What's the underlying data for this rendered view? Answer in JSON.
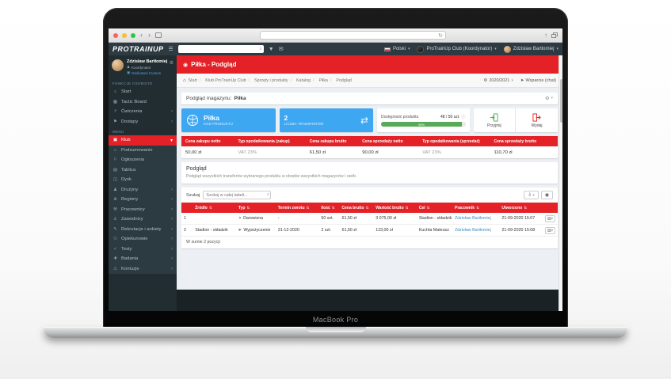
{
  "laptop": {
    "label": "MacBook Pro"
  },
  "icons": {
    "hamburger": "☰",
    "magnifier": "⌕",
    "filter": "▼",
    "mail": "✉",
    "caret_down": "▾",
    "chevron_right": "›",
    "gear": "⚙",
    "home": "⌂",
    "transfer": "⇄",
    "info": "ⓘ",
    "sort": "⇅",
    "refresh": "↻",
    "back": "‹",
    "forward": "›",
    "share": "↑",
    "ball": "◉",
    "role": "♟",
    "link_badge": "▣",
    "download": "⇩",
    "eye": "◉",
    "row_menu": "▤",
    "support": "➤"
  },
  "navbar": {
    "brand": "PROTRAINUP",
    "language": "Polski",
    "club": "ProTrainUp Club  (Koordynator)",
    "user": "Zdzisław Bartłomiej"
  },
  "sidebar": {
    "profile": {
      "name": "Zdzisław Bartłomiej",
      "role": "Koordynator",
      "link": "Dedicated Custom"
    },
    "section_personal": "FUNKCJE OSOBISTE",
    "personal": [
      {
        "label": "Start",
        "icon": "⌂"
      },
      {
        "label": "Tactic Board",
        "icon": "▦"
      },
      {
        "label": "Ćwiczenia",
        "icon": "⚡"
      },
      {
        "label": "Dostępy",
        "icon": "⚑"
      }
    ],
    "section_menu": "MENU",
    "active_item": {
      "label": "Klub",
      "icon": "▣"
    },
    "menu": [
      {
        "label": "Podsumowanie",
        "icon": "⌂"
      },
      {
        "label": "Ogłoszenia",
        "icon": "⚐"
      },
      {
        "label": "Tablica",
        "icon": "▤"
      },
      {
        "label": "Dysk",
        "icon": "◫"
      },
      {
        "label": "Drużyny",
        "icon": "♟"
      },
      {
        "label": "Regiony",
        "icon": "⊕"
      },
      {
        "label": "Pracownicy",
        "icon": "⚒"
      },
      {
        "label": "Zawodnicy",
        "icon": "♙"
      },
      {
        "label": "Rekrutacje i ankiety",
        "icon": "✎"
      },
      {
        "label": "Opiekunowie",
        "icon": "⚇"
      },
      {
        "label": "Testy",
        "icon": "✓"
      },
      {
        "label": "Badania",
        "icon": "✚"
      },
      {
        "label": "Kontuzje",
        "icon": "⚠"
      }
    ]
  },
  "page": {
    "title": "Piłka - Podgląd",
    "breadcrumb": [
      "Start",
      "Klub ProTrainUp Club",
      "Sprzęty i produkty",
      "Katalog",
      "Piłka",
      "Podgląd"
    ],
    "season": "2020/2021",
    "support": "Wsparcie (chat)"
  },
  "warehouse": {
    "panel_label": "Podgląd magazynu:",
    "panel_name": "Piłka",
    "cards": {
      "product": {
        "title": "Piłka",
        "subtitle": "KOD PRODUKTU"
      },
      "transfers": {
        "value": "2",
        "label": "LICZBA TRANSFERÓW"
      },
      "availability": {
        "label": "Dostępność produktu",
        "count": "48 / 50 szt.",
        "percent": "96%"
      },
      "actions": {
        "receive": "Przyjmij",
        "issue": "Wydaj"
      }
    },
    "price_table": {
      "headers": [
        "Cena zakupu netto",
        "Typ opodatkowania (zakup)",
        "Cena zakupu brutto",
        "Cena sprzedaży netto",
        "Typ opodatkowania (sprzedaż)",
        "Cena sprzedaży brutto"
      ],
      "values": [
        "50,00 zł",
        "VAT 23%",
        "61,50 zł",
        "90,00 zł",
        "VAT 23%",
        "110,70 zł"
      ]
    }
  },
  "preview": {
    "title": "Podgląd",
    "description": "Podgląd wszystkich transferów wybranego produktu w obrębie wszystkich magazynów i osób.",
    "search_label": "Szukaj",
    "search_placeholder": "Szukaj w całej tabeli...",
    "table": {
      "headers": [
        "Źródło",
        "Typ",
        "Termin zwrotu",
        "Ilość",
        "Cena brutto",
        "Wartość brutto",
        "Cel",
        "Pracownik",
        "Utworzono"
      ],
      "rows": [
        {
          "index": "1",
          "source": "",
          "type": "Darowizna",
          "type_icon": "✦",
          "return_date": "-",
          "qty": "50 szt.",
          "price": "61,50 zł",
          "value": "3 075,00 zł",
          "target": "Stadion - składzik",
          "employee": "Zdzisław Bartłomiej",
          "created": "21-09-2020 15:07"
        },
        {
          "index": "2",
          "source": "Stadion - składzik",
          "type": "Wypożyczenie",
          "type_icon": "☛",
          "return_date": "31-12-2020",
          "qty": "2 szt.",
          "price": "61,50 zł",
          "value": "123,00 zł",
          "target": "Kuchta Mateusz",
          "employee": "Zdzisław Bartłomiej",
          "created": "21-09-2020 15:08"
        }
      ],
      "summary": "W sumie 2 pozycji"
    }
  }
}
